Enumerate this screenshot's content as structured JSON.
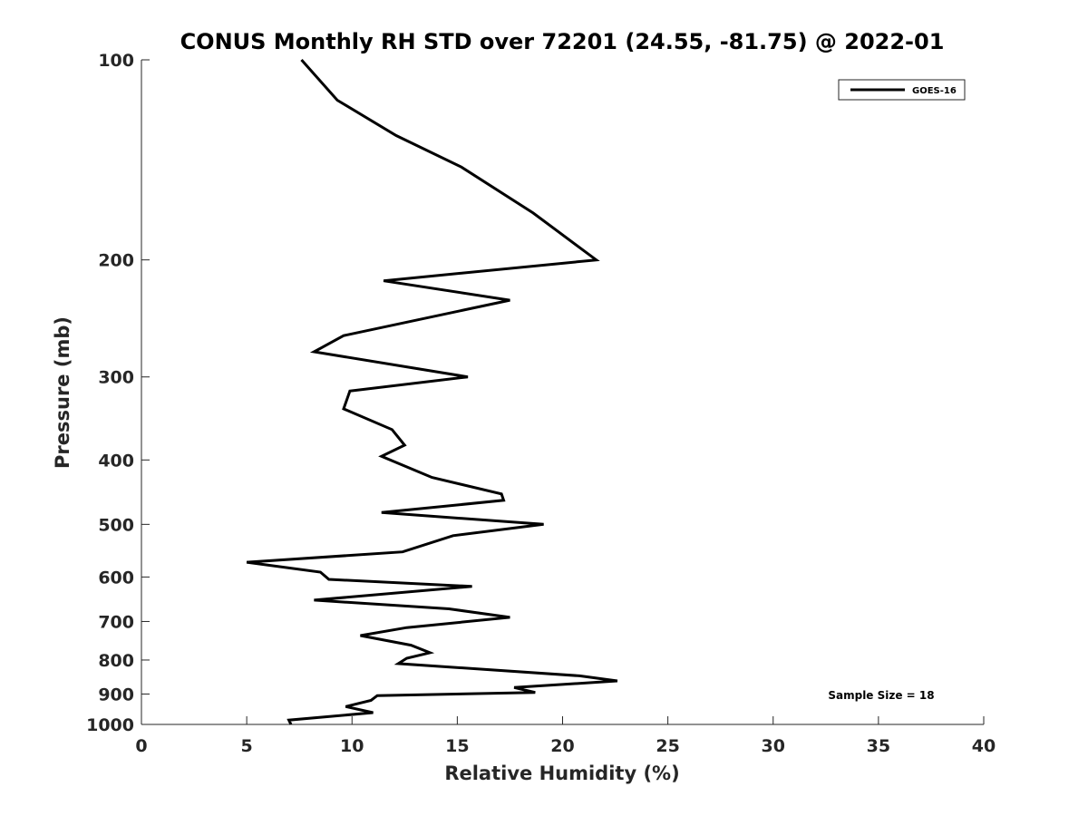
{
  "chart_data": {
    "type": "line",
    "title": "CONUS Monthly RH STD over 72201 (24.55, -81.75) @ 2022-01",
    "xlabel": "Relative Humidity (%)",
    "ylabel": "Pressure (mb)",
    "xlim": [
      0,
      40
    ],
    "ylim": [
      100,
      1000
    ],
    "yscale": "log",
    "y_reversed": true,
    "x_ticks": [
      0,
      5,
      10,
      15,
      20,
      25,
      30,
      35,
      40
    ],
    "y_ticks": [
      100,
      200,
      300,
      400,
      500,
      600,
      700,
      800,
      900,
      1000
    ],
    "grid": false,
    "legend_position": "top-right",
    "annotation": "Sample Size = 18",
    "line_color": "#000000",
    "series": [
      {
        "name": "GOES-16",
        "x": [
          7.6,
          9.3,
          12.1,
          15.2,
          18.6,
          21.6,
          11.5,
          17.5,
          9.6,
          8.2,
          15.5,
          9.9,
          9.6,
          11.9,
          12.5,
          11.4,
          13.8,
          17.1,
          17.2,
          11.4,
          19.1,
          14.8,
          12.4,
          5.0,
          8.5,
          8.9,
          15.7,
          8.2,
          14.6,
          17.5,
          12.6,
          10.4,
          12.8,
          13.7,
          12.6,
          12.2,
          20.8,
          22.6,
          17.7,
          18.7,
          11.2,
          10.9,
          9.7,
          11.0,
          7.0,
          7.1
        ],
        "y": [
          100,
          115,
          130,
          145,
          170,
          200,
          215,
          230,
          260,
          275,
          300,
          315,
          335,
          360,
          380,
          395,
          425,
          450,
          460,
          480,
          500,
          520,
          550,
          570,
          590,
          605,
          620,
          650,
          670,
          690,
          715,
          735,
          760,
          780,
          795,
          810,
          845,
          860,
          880,
          895,
          905,
          920,
          940,
          960,
          985,
          1000
        ]
      }
    ]
  }
}
